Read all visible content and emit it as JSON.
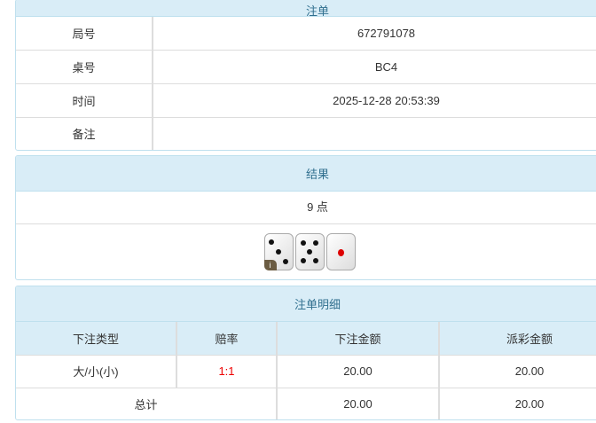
{
  "order": {
    "title": "注单",
    "rows": [
      {
        "label": "局号",
        "value": "672791078"
      },
      {
        "label": "桌号",
        "value": "BC4"
      },
      {
        "label": "时间",
        "value": "2025-12-28 20:53:39"
      },
      {
        "label": "备注",
        "value": ""
      }
    ]
  },
  "result": {
    "title": "结果",
    "points": "9 点",
    "dice": [
      3,
      5,
      1
    ],
    "badge": "i"
  },
  "details": {
    "title": "注单明细",
    "headers": [
      "下注类型",
      "赔率",
      "下注金额",
      "派彩金额"
    ],
    "rows": [
      {
        "type": "大/小(小)",
        "odds": "1:1",
        "bet": "20.00",
        "payout": "20.00"
      }
    ],
    "total": {
      "label": "总计",
      "bet": "20.00",
      "payout": "20.00"
    },
    "odds_color": "#e00000"
  }
}
